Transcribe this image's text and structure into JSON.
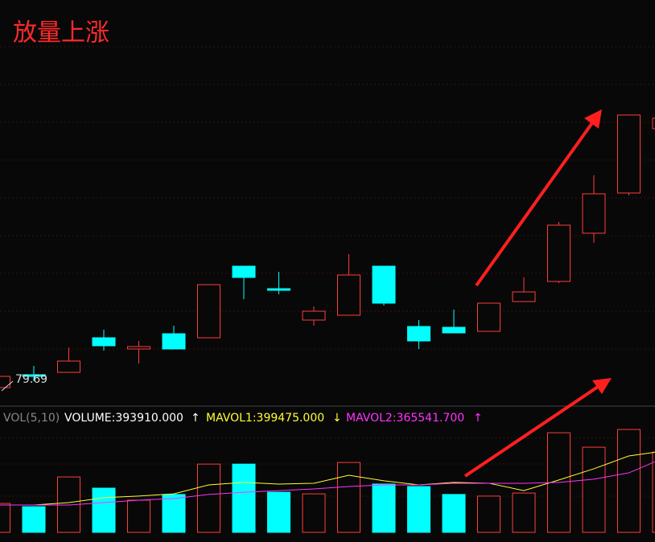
{
  "chart_data": [
    {
      "type": "candlestick",
      "title": "放量上涨",
      "open": [
        79.69,
        80.01,
        80.07,
        80.93,
        80.65,
        81.03,
        80.93,
        82.71,
        82.15,
        81.37,
        81.49,
        82.71,
        81.21,
        81.19,
        81.09,
        81.83,
        82.33,
        83.53,
        84.53,
        86.13
      ],
      "close": [
        79.97,
        79.97,
        80.35,
        80.73,
        80.71,
        80.65,
        82.25,
        82.43,
        82.11,
        81.59,
        82.49,
        81.79,
        80.85,
        81.05,
        81.79,
        82.07,
        83.73,
        84.51,
        86.47,
        86.39
      ],
      "high": [
        79.97,
        80.23,
        80.69,
        81.13,
        80.85,
        81.23,
        82.25,
        82.71,
        82.57,
        81.71,
        83.01,
        82.71,
        81.37,
        81.63,
        81.79,
        82.43,
        83.81,
        84.97,
        86.47,
        86.53
      ],
      "low": [
        79.69,
        79.85,
        80.07,
        80.61,
        80.29,
        80.65,
        80.93,
        81.89,
        82.01,
        81.23,
        81.49,
        81.73,
        80.65,
        81.05,
        81.09,
        81.83,
        82.29,
        83.29,
        84.47,
        86.03
      ],
      "ylim": [
        79.23,
        89.33
      ],
      "up_color": "#ff3c3c",
      "down_color": "#00ffff",
      "low_label": "79.69"
    },
    {
      "type": "volume",
      "indicator": "VOL(5,10)",
      "ylim": [
        0,
        600000
      ],
      "series": [
        {
          "legend": "VOLUME:393910.000",
          "trend": "↑",
          "color": "#ffffff",
          "values": [
            142000,
            126000,
            272000,
            217000,
            158000,
            186000,
            335000,
            335000,
            197000,
            189000,
            343000,
            237000,
            225000,
            186000,
            178000,
            193000,
            489000,
            418000,
            505000,
            393910
          ]
        },
        {
          "legend": "MAVOL1:399475.000",
          "trend": "↓",
          "color": "#ffff33",
          "values": [
            134000,
            134000,
            146000,
            170000,
            178000,
            189000,
            233000,
            245000,
            237000,
            241000,
            280000,
            253000,
            233000,
            245000,
            241000,
            205000,
            257000,
            312000,
            375000,
            399475
          ]
        },
        {
          "legend": "MAVOL2:365541.700",
          "trend": "↑",
          "color": "#ff33ff",
          "values": [
            134000,
            134000,
            134000,
            146000,
            158000,
            166000,
            186000,
            197000,
            205000,
            213000,
            225000,
            233000,
            233000,
            241000,
            241000,
            241000,
            245000,
            261000,
            292000,
            365541.7
          ]
        }
      ]
    }
  ]
}
